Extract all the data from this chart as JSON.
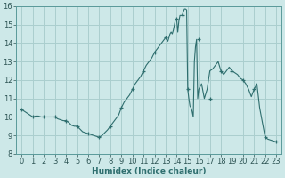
{
  "x": [
    0,
    0.25,
    0.5,
    0.75,
    1,
    1.25,
    1.5,
    1.75,
    2,
    2.25,
    2.5,
    2.75,
    3,
    3.25,
    3.5,
    3.75,
    4,
    4.25,
    4.5,
    4.75,
    5,
    5.25,
    5.5,
    5.75,
    6,
    6.25,
    6.5,
    6.75,
    7,
    7.25,
    7.5,
    7.75,
    8,
    8.25,
    8.5,
    8.75,
    9,
    9.25,
    9.5,
    9.75,
    10,
    10.25,
    10.5,
    10.75,
    11,
    11.25,
    11.5,
    11.75,
    12,
    12.25,
    12.5,
    12.75,
    13,
    13.1,
    13.2,
    13.3,
    13.4,
    13.5,
    13.6,
    13.7,
    13.8,
    13.9,
    14,
    14.1,
    14.2,
    14.3,
    14.4,
    14.5,
    14.6,
    14.7,
    14.8,
    14.9,
    15,
    15.1,
    15.2,
    15.3,
    15.4,
    15.5,
    15.6,
    15.7,
    15.8,
    15.9,
    16,
    16.25,
    16.5,
    16.75,
    17,
    17.25,
    17.5,
    17.75,
    18,
    18.25,
    18.5,
    18.75,
    19,
    19.25,
    19.5,
    19.75,
    20,
    20.25,
    20.5,
    20.75,
    21,
    21.25,
    21.5,
    21.75,
    22,
    22.25,
    22.5,
    22.75,
    23
  ],
  "y": [
    10.4,
    10.3,
    10.2,
    10.1,
    10.0,
    10.05,
    10.05,
    10.0,
    10.0,
    10.0,
    10.0,
    10.0,
    10.0,
    9.9,
    9.85,
    9.8,
    9.8,
    9.7,
    9.55,
    9.5,
    9.5,
    9.35,
    9.2,
    9.15,
    9.1,
    9.05,
    9.0,
    8.95,
    8.9,
    9.0,
    9.15,
    9.3,
    9.5,
    9.7,
    9.9,
    10.1,
    10.5,
    10.8,
    11.0,
    11.2,
    11.5,
    11.8,
    12.0,
    12.2,
    12.5,
    12.8,
    13.0,
    13.2,
    13.5,
    13.7,
    13.9,
    14.1,
    14.3,
    14.2,
    14.1,
    14.3,
    14.5,
    14.6,
    14.5,
    14.7,
    15.0,
    15.3,
    15.3,
    14.6,
    15.2,
    15.5,
    15.5,
    15.5,
    15.7,
    15.85,
    15.85,
    15.8,
    11.5,
    11.0,
    10.6,
    10.5,
    10.3,
    10.0,
    13.0,
    13.8,
    14.2,
    11.0,
    11.5,
    11.8,
    11.0,
    11.5,
    12.5,
    12.6,
    12.8,
    13.0,
    12.5,
    12.3,
    12.5,
    12.7,
    12.5,
    12.4,
    12.3,
    12.1,
    12.0,
    11.8,
    11.5,
    11.1,
    11.5,
    11.8,
    10.5,
    9.7,
    8.9,
    8.8,
    8.75,
    8.7,
    8.65
  ],
  "marked_x": [
    0,
    1,
    2,
    3,
    4,
    5,
    6,
    7,
    8,
    9,
    10,
    11,
    12,
    13,
    14,
    14.5,
    15,
    16,
    17,
    18,
    19,
    20,
    21,
    22,
    23
  ],
  "marked_y": [
    10.4,
    10.0,
    10.0,
    10.0,
    9.8,
    9.5,
    9.1,
    8.9,
    9.5,
    10.5,
    11.5,
    12.5,
    13.5,
    14.3,
    15.3,
    15.5,
    11.5,
    14.2,
    11.0,
    12.5,
    12.5,
    12.0,
    11.5,
    8.9,
    8.65
  ],
  "line_color": "#2e6e6e",
  "marker_color": "#2e6e6e",
  "bg_color": "#cde8e8",
  "grid_color": "#aacece",
  "xlabel": "Humidex (Indice chaleur)",
  "xlim": [
    -0.5,
    23.5
  ],
  "ylim": [
    8,
    16
  ],
  "xticks": [
    0,
    1,
    2,
    3,
    4,
    5,
    6,
    7,
    8,
    9,
    10,
    11,
    12,
    13,
    14,
    15,
    16,
    17,
    18,
    19,
    20,
    21,
    22,
    23
  ],
  "yticks": [
    8,
    9,
    10,
    11,
    12,
    13,
    14,
    15,
    16
  ],
  "label_fontsize": 6.5,
  "tick_fontsize": 6
}
